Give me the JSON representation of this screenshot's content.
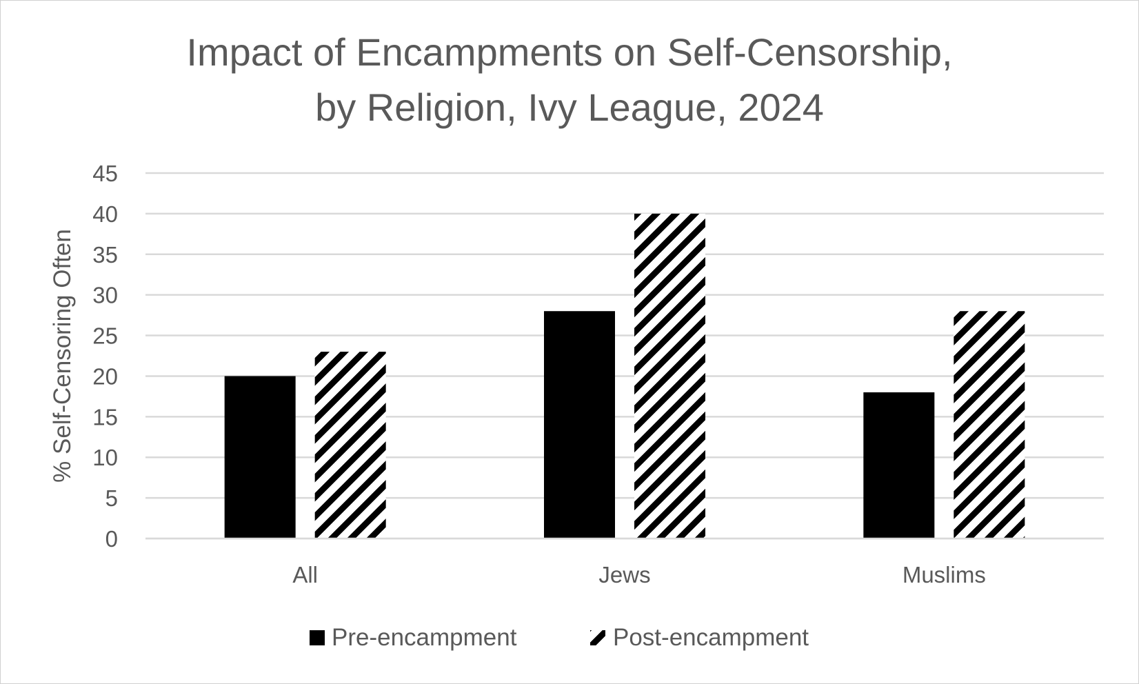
{
  "chart_data": {
    "type": "bar",
    "title_lines": [
      "Impact of Encampments on Self-Censorship,",
      "by Religion, Ivy League, 2024"
    ],
    "ylabel": "% Self-Censoring Often",
    "xlabel": "",
    "ylim": [
      0,
      45
    ],
    "ytick_step": 5,
    "yticks": [
      "0",
      "5",
      "10",
      "15",
      "20",
      "25",
      "30",
      "35",
      "40",
      "45"
    ],
    "grid": true,
    "legend_position": "bottom",
    "categories": [
      "All",
      "Jews",
      "Muslims"
    ],
    "series": [
      {
        "name": "Pre-encampment",
        "values": [
          20,
          28,
          18
        ],
        "fill": "solid",
        "color": "#000000"
      },
      {
        "name": "Post-encampment",
        "values": [
          23,
          40,
          28
        ],
        "fill": "diagonal-stripes",
        "color": "#000000"
      }
    ]
  }
}
